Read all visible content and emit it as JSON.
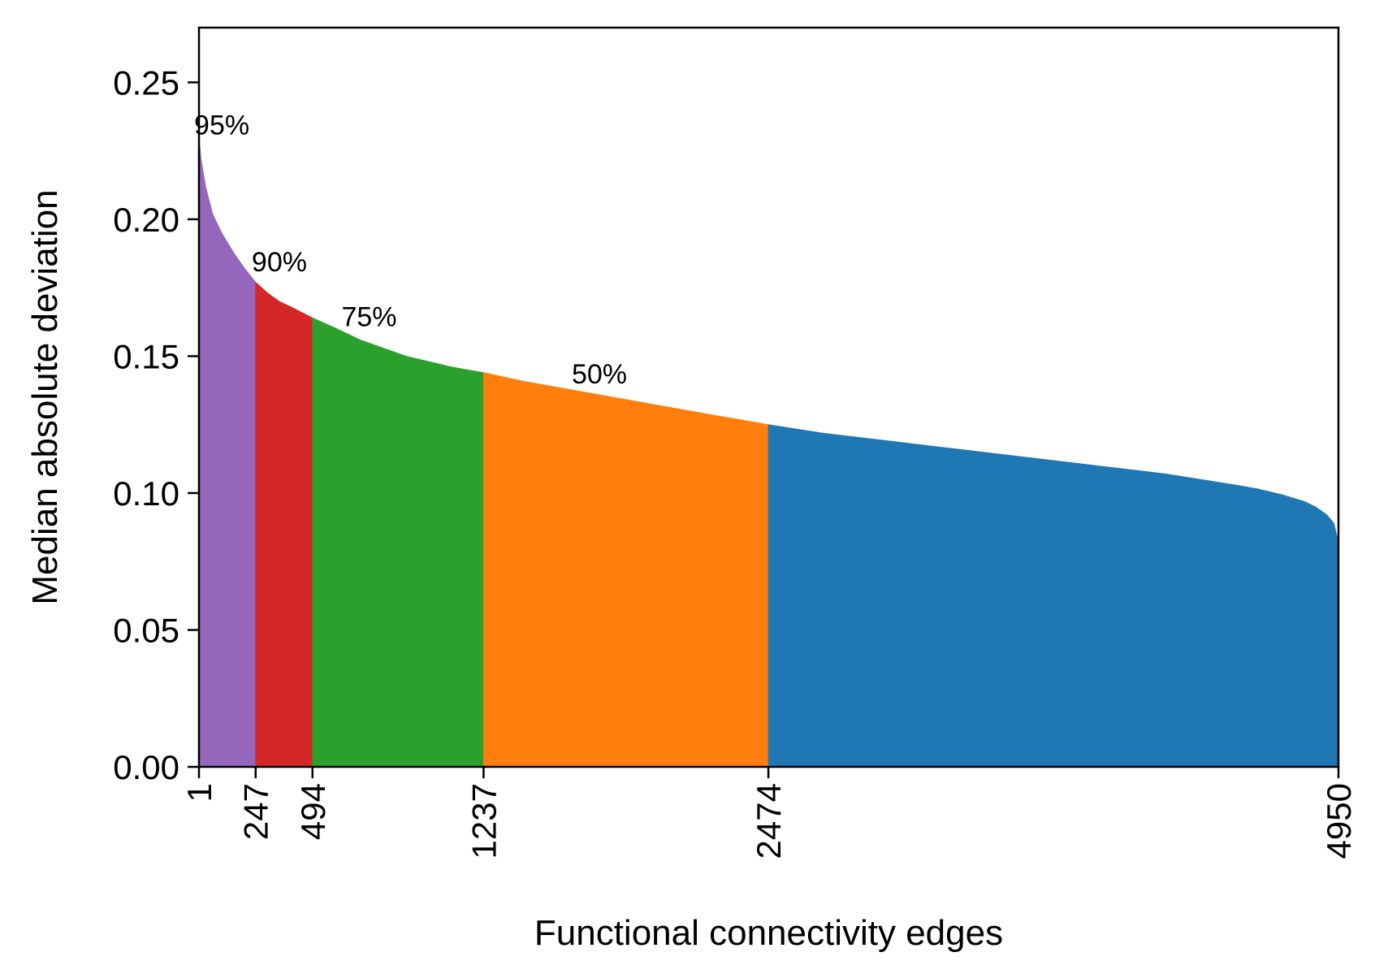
{
  "chart_data": {
    "type": "area",
    "xlabel": "Functional connectivity edges",
    "ylabel": "Median absolute deviation",
    "xlim": [
      1,
      4950
    ],
    "ylim": [
      0,
      0.27
    ],
    "x_ticks": [
      1,
      247,
      494,
      1237,
      2474,
      4950
    ],
    "y_ticks": [
      0.0,
      0.05,
      0.1,
      0.15,
      0.2,
      0.25
    ],
    "y_tick_labels": [
      "0.00",
      "0.05",
      "0.10",
      "0.15",
      "0.20",
      "0.25"
    ],
    "grid": false,
    "curve": {
      "x": [
        1,
        10,
        30,
        60,
        100,
        150,
        200,
        247,
        300,
        350,
        400,
        494,
        600,
        700,
        800,
        900,
        1000,
        1100,
        1237,
        1400,
        1600,
        1800,
        2000,
        2200,
        2474,
        2700,
        3000,
        3300,
        3600,
        3900,
        4200,
        4500,
        4600,
        4700,
        4800,
        4850,
        4900,
        4930,
        4950
      ],
      "y": [
        0.23,
        0.222,
        0.212,
        0.202,
        0.195,
        0.188,
        0.182,
        0.177,
        0.173,
        0.17,
        0.168,
        0.164,
        0.16,
        0.156,
        0.153,
        0.15,
        0.148,
        0.146,
        0.144,
        0.141,
        0.138,
        0.135,
        0.132,
        0.129,
        0.125,
        0.122,
        0.119,
        0.116,
        0.113,
        0.11,
        0.107,
        0.103,
        0.1015,
        0.0995,
        0.097,
        0.095,
        0.092,
        0.089,
        0.082
      ]
    },
    "segments": [
      {
        "x_start": 1,
        "x_end": 247,
        "color": "#9467bd",
        "annotation": "95%",
        "label_x": 100,
        "label_y": 0.231
      },
      {
        "x_start": 247,
        "x_end": 494,
        "color": "#d62728",
        "annotation": "90%",
        "label_x": 350,
        "label_y": 0.181
      },
      {
        "x_start": 494,
        "x_end": 1237,
        "color": "#2ca02c",
        "annotation": "75%",
        "label_x": 740,
        "label_y": 0.161
      },
      {
        "x_start": 1237,
        "x_end": 2474,
        "color": "#ff7f0e",
        "annotation": "50%",
        "label_x": 1740,
        "label_y": 0.14
      },
      {
        "x_start": 2474,
        "x_end": 4950,
        "color": "#1f77b4"
      }
    ]
  }
}
